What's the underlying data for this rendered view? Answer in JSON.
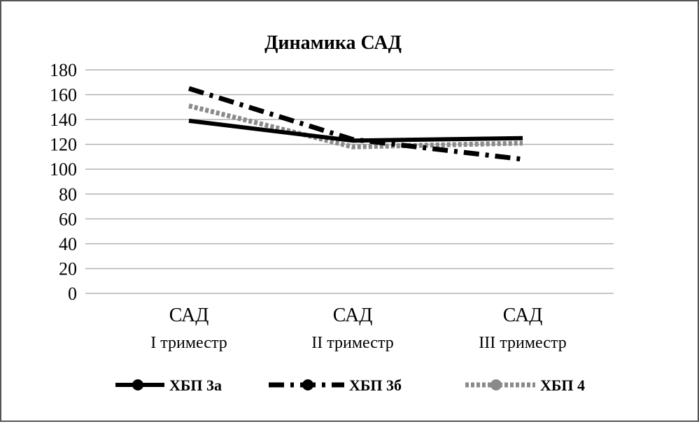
{
  "chart_data": {
    "type": "line",
    "title": "Динамика САД",
    "categories": [
      {
        "label": "САД",
        "sublabel": "I триместр"
      },
      {
        "label": "САД",
        "sublabel": "II триместр"
      },
      {
        "label": "САД",
        "sublabel": "III триместр"
      }
    ],
    "ylim": [
      0,
      180
    ],
    "yticks": [
      0,
      20,
      40,
      60,
      80,
      100,
      120,
      140,
      160,
      180
    ],
    "grid": true,
    "legend_position": "bottom",
    "series": [
      {
        "name": "ХБП 3а",
        "values": [
          139,
          123,
          125
        ],
        "color": "#000000",
        "style": "solid"
      },
      {
        "name": "ХБП 3б",
        "values": [
          165,
          124,
          108
        ],
        "color": "#000000",
        "style": "dash-dot"
      },
      {
        "name": "ХБП 4",
        "values": [
          151,
          118,
          121
        ],
        "color": "#8a8a8a",
        "style": "dotted"
      }
    ]
  }
}
